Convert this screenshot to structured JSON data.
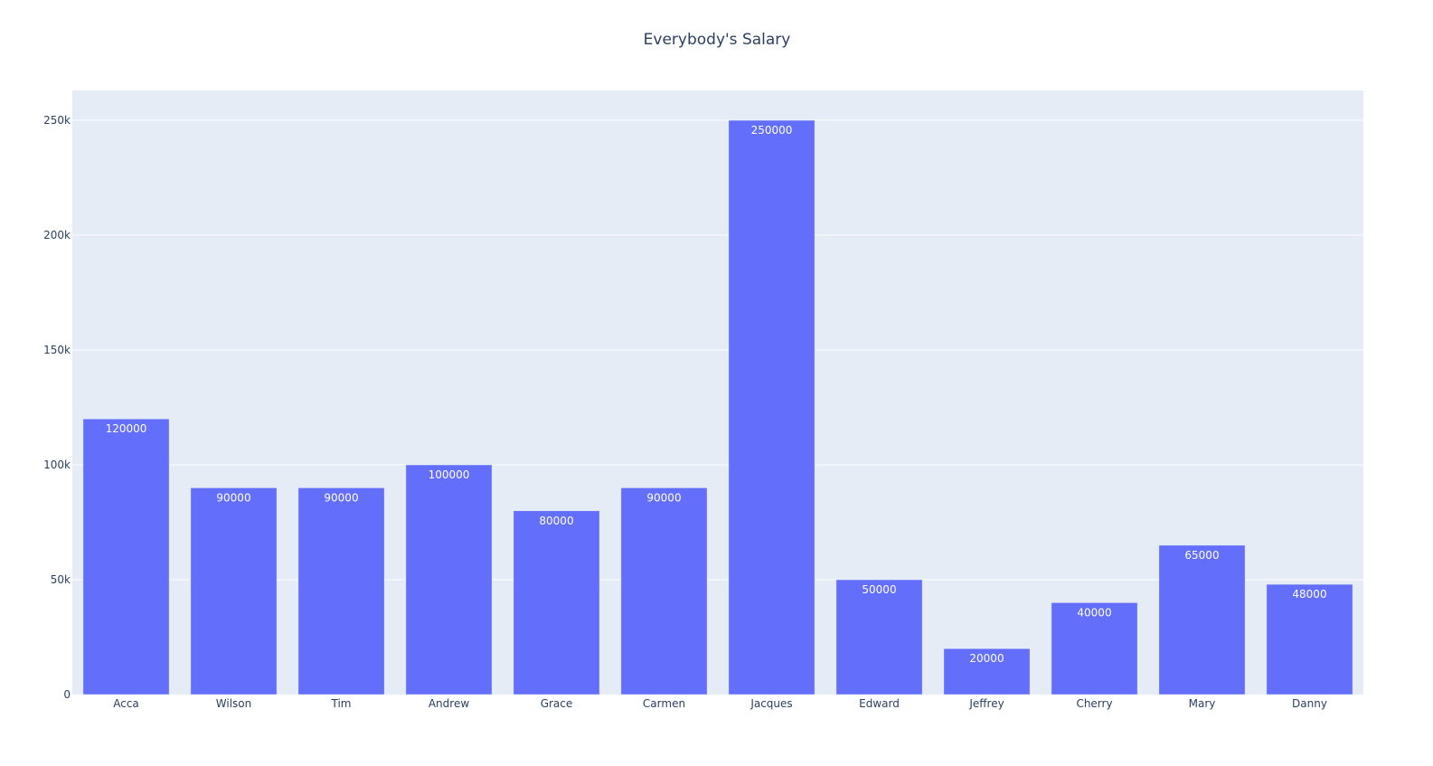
{
  "chart_data": {
    "type": "bar",
    "title": "Everybody's Salary",
    "xlabel": "",
    "ylabel": "",
    "categories": [
      "Acca",
      "Wilson",
      "Tim",
      "Andrew",
      "Grace",
      "Carmen",
      "Jacques",
      "Edward",
      "Jeffrey",
      "Cherry",
      "Mary",
      "Danny"
    ],
    "values": [
      120000,
      90000,
      90000,
      100000,
      80000,
      90000,
      250000,
      50000,
      20000,
      40000,
      65000,
      48000
    ],
    "ylim": [
      0,
      263000
    ],
    "yticks": [
      0,
      50000,
      100000,
      150000,
      200000,
      250000
    ],
    "ytick_labels": [
      "0",
      "50k",
      "100k",
      "150k",
      "200k",
      "250k"
    ],
    "grid": true,
    "legend": "none",
    "data_labels": "inside-top"
  },
  "colors": {
    "bar": "#636efa",
    "plot_background": "#e5ecf6",
    "gridline": "#ffffff",
    "text": "#2a3f5f",
    "bar_label": "#ffffff"
  }
}
